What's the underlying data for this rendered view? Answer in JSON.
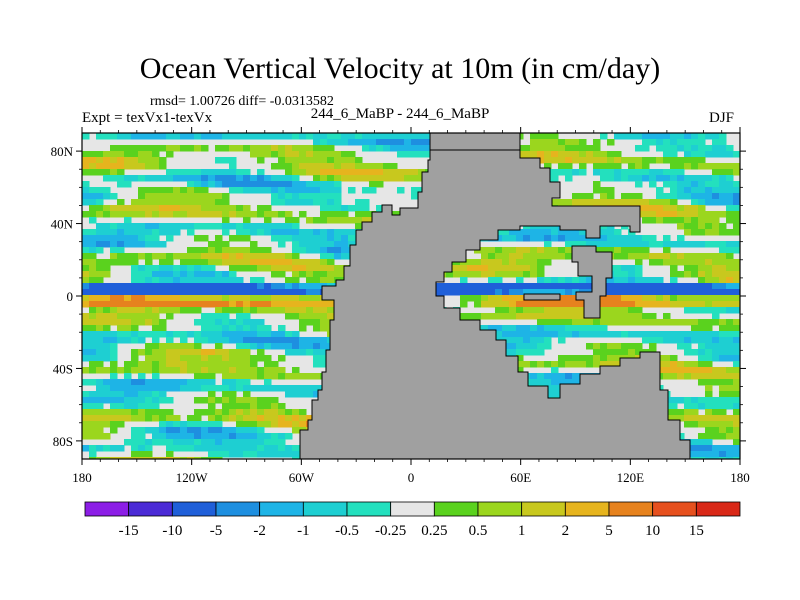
{
  "title": "Ocean Vertical Velocity at 10m (in cm/day)",
  "stats": "rmsd= 1.00726 diff= -0.0313582",
  "expt": "Expt = texVx1-texVx",
  "center_label": "244_6_MaBP - 244_6_MaBP",
  "season": "DJF",
  "chart_data": {
    "type": "heatmap",
    "title": "Ocean Vertical Velocity at 10m (in cm/day)",
    "units": "cm/day",
    "projection": "cylindrical equidistant",
    "x_range": [
      -180,
      180
    ],
    "y_range": [
      -90,
      90
    ],
    "x_ticks": [
      {
        "value": -180,
        "label": "180"
      },
      {
        "value": -120,
        "label": "120W"
      },
      {
        "value": -60,
        "label": "60W"
      },
      {
        "value": 0,
        "label": "0"
      },
      {
        "value": 60,
        "label": "60E"
      },
      {
        "value": 120,
        "label": "120E"
      },
      {
        "value": 180,
        "label": "180"
      }
    ],
    "y_ticks": [
      {
        "value": 80,
        "label": "80N"
      },
      {
        "value": 40,
        "label": "40N"
      },
      {
        "value": 0,
        "label": "0"
      },
      {
        "value": -40,
        "label": "40S"
      },
      {
        "value": -80,
        "label": "80S"
      }
    ],
    "colorbar": {
      "levels": [
        "-15",
        "-10",
        "-5",
        "-2",
        "-1",
        "-0.5",
        "-0.25",
        "0.25",
        "0.5",
        "1",
        "2",
        "5",
        "10",
        "15"
      ],
      "colors": [
        "#8c1ee6",
        "#4b2bd6",
        "#1f5fd9",
        "#1e8fe0",
        "#1eb4e6",
        "#1ecfd2",
        "#23e0be",
        "#e6e6e6",
        "#5ad21e",
        "#9bd61e",
        "#c8c81e",
        "#e6b41e",
        "#e6821e",
        "#e6501e",
        "#d92817"
      ]
    },
    "land_color": "#a0a0a0",
    "missing_color": "#e6e6e6"
  }
}
